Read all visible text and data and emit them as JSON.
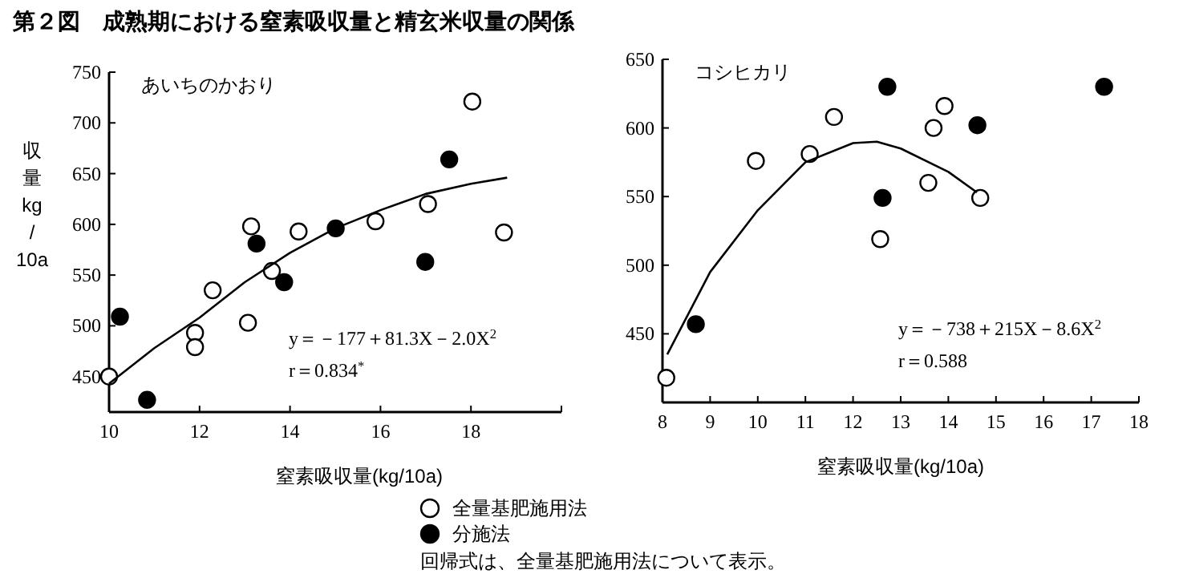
{
  "chart_data": [
    {
      "type": "scatter",
      "title": "第２図　成熟期における窒素吸収量と精玄米収量の関係",
      "subtitle": "あいちのかおり",
      "xlabel": "窒素吸収量(kg/10a)",
      "ylabel": "収量kg/10a",
      "xlim": [
        10,
        20
      ],
      "ylim": [
        415,
        750
      ],
      "xticks": [
        10,
        12,
        14,
        16,
        18,
        {
          "value": 20,
          "label": null
        }
      ],
      "yticks": [
        450,
        500,
        550,
        600,
        650,
        700,
        750
      ],
      "legend": "bottom",
      "annotations": [
        "y＝－177＋81.3X－2.0X$^{2}$",
        "r＝0.834$^{*}$",
        "回帰式は、全量基肥施用法について表示。"
      ],
      "series": [
        {
          "name": "全量基肥施用法",
          "marker": "circle",
          "color": "#ffffff",
          "x": [
            10.0,
            11.9,
            11.9,
            12.29,
            13.07,
            13.14,
            13.6,
            14.19,
            15.89,
            17.05,
            18.03,
            18.73
          ],
          "values": [
            450,
            493,
            479,
            535,
            503,
            598,
            554,
            593,
            603,
            620,
            721,
            592
          ]
        },
        {
          "name": "分施法",
          "marker": "circle",
          "color": "#000000",
          "x": [
            10.24,
            10.84,
            13.26,
            13.87,
            15.01,
            16.99,
            17.52
          ],
          "values": [
            509,
            427,
            581,
            543,
            596,
            563,
            664
          ]
        },
        {
          "type": "line",
          "marker": "none",
          "color": "#000000",
          "x": [
            10,
            11,
            12,
            13,
            14,
            15,
            16,
            17,
            18,
            18.8
          ],
          "values": [
            443,
            478,
            508,
            543,
            572,
            596,
            614,
            630,
            640,
            646
          ]
        }
      ]
    },
    {
      "type": "scatter",
      "subtitle": "コシヒカリ",
      "xlabel": "窒素吸収量(kg/10a)",
      "xlim": [
        8,
        18
      ],
      "ylim": [
        400,
        650
      ],
      "xticks": [
        8,
        9,
        10,
        11,
        12,
        13,
        14,
        15,
        16,
        17,
        18
      ],
      "yticks": [
        450,
        500,
        550,
        600,
        650
      ],
      "annotations": [
        "y＝－738＋215X－8.6X$^{2}$",
        "r＝0.588"
      ],
      "series": [
        {
          "marker": "circle",
          "color": "#ffffff",
          "x": [
            8.08,
            9.96,
            11.09,
            11.6,
            12.57,
            13.58,
            13.69,
            13.92,
            14.67
          ],
          "values": [
            418,
            576,
            581,
            608,
            519,
            560,
            600,
            616,
            549
          ]
        },
        {
          "marker": "circle",
          "color": "#000000",
          "x": [
            8.7,
            12.72,
            12.62,
            14.61,
            17.27
          ],
          "values": [
            457,
            630,
            549,
            602,
            630
          ]
        },
        {
          "type": "line",
          "marker": "none",
          "color": "#000000",
          "x": [
            8.1,
            9,
            10,
            11,
            12,
            12.5,
            13,
            14,
            14.6
          ],
          "values": [
            435,
            495,
            540,
            575,
            589,
            590,
            585,
            568,
            553
          ]
        }
      ]
    }
  ]
}
